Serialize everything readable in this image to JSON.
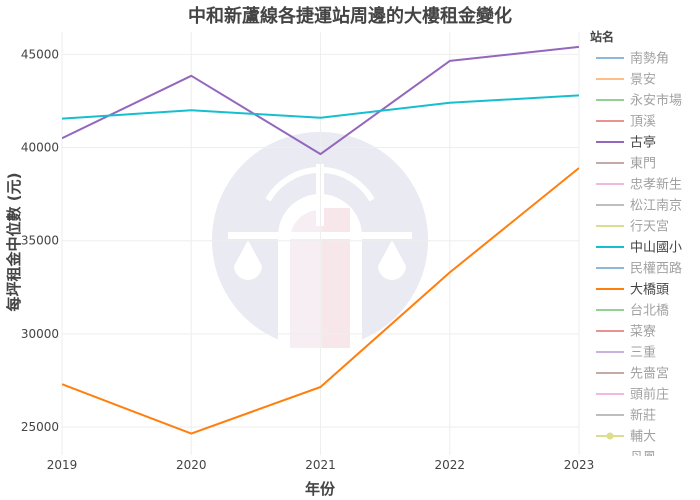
{
  "chart_data": {
    "type": "line",
    "title": "中和新蘆線各捷運站周邊的大樓租金變化",
    "xlabel": "年份",
    "ylabel": "每坪租金中位數 (元)",
    "x": [
      2019,
      2020,
      2021,
      2022,
      2023
    ],
    "xlim": [
      2019,
      2023
    ],
    "ylim": [
      23500,
      46200
    ],
    "yticks": [
      25000,
      30000,
      35000,
      40000,
      45000
    ],
    "grid": true,
    "legend_title": "站名",
    "legend_placement": "right",
    "colors": {
      "purple": "#9467bd",
      "teal": "#17becf",
      "orange": "#ff7f0e",
      "watermark": "#e8e9f1"
    },
    "series": [
      {
        "name": "南勢角",
        "color": "#1f77b4",
        "values": null
      },
      {
        "name": "景安",
        "color": "#ff7f0e",
        "values": null
      },
      {
        "name": "永安市場",
        "color": "#2ca02c",
        "values": null
      },
      {
        "name": "頂溪",
        "color": "#d62728",
        "values": null
      },
      {
        "name": "古亭",
        "color": "#9467bd",
        "values": [
          40500,
          43850,
          39650,
          44650,
          45400
        ]
      },
      {
        "name": "東門",
        "color": "#8c564b",
        "values": null
      },
      {
        "name": "忠孝新生",
        "color": "#e377c2",
        "values": null
      },
      {
        "name": "松江南京",
        "color": "#7f7f7f",
        "values": null
      },
      {
        "name": "行天宮",
        "color": "#bcbd22",
        "values": null
      },
      {
        "name": "中山國小",
        "color": "#17becf",
        "values": [
          41550,
          42000,
          41600,
          42400,
          42800
        ]
      },
      {
        "name": "民權西路",
        "color": "#1f77b4",
        "values": null
      },
      {
        "name": "大橋頭",
        "color": "#ff7f0e",
        "values": [
          27300,
          24650,
          27150,
          33300,
          38900
        ]
      },
      {
        "name": "台北橋",
        "color": "#2ca02c",
        "values": null
      },
      {
        "name": "菜寮",
        "color": "#d62728",
        "values": null
      },
      {
        "name": "三重",
        "color": "#9467bd",
        "values": null
      },
      {
        "name": "先嗇宮",
        "color": "#8c564b",
        "values": null
      },
      {
        "name": "頭前庄",
        "color": "#e377c2",
        "values": null
      },
      {
        "name": "新莊",
        "color": "#7f7f7f",
        "values": null
      },
      {
        "name": "輔大",
        "color": "#bcbd22",
        "values": null,
        "marker": true
      },
      {
        "name": "丹鳳",
        "color": "#17becf",
        "values": null
      }
    ]
  }
}
